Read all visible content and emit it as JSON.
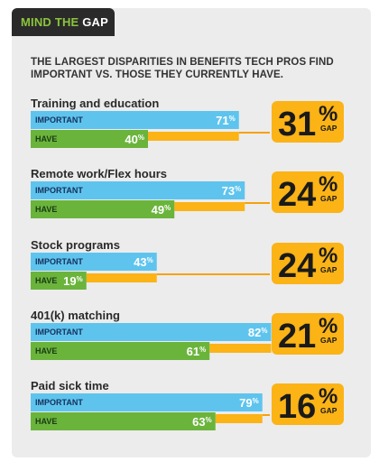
{
  "header": {
    "tab_part1": "MIND THE ",
    "tab_part2": "GAP"
  },
  "subtitle": "THE LARGEST DISPARITIES IN BENEFITS TECH PROS FIND IMPORTANT VS. THOSE THEY CURRENTLY HAVE.",
  "colors": {
    "important": "#5ec4ee",
    "have": "#6ab43c",
    "gap": "#fbb316",
    "connector": "#f5a20a"
  },
  "chart_data": {
    "type": "bar",
    "title": "THE LARGEST DISPARITIES IN BENEFITS TECH PROS FIND IMPORTANT VS. THOSE THEY CURRENTLY HAVE.",
    "categories": [
      "Training and education",
      "Remote work/Flex hours",
      "Stock programs",
      "401(k) matching",
      "Paid sick time"
    ],
    "series": [
      {
        "name": "IMPORTANT",
        "values": [
          71,
          73,
          43,
          82,
          79
        ]
      },
      {
        "name": "HAVE",
        "values": [
          40,
          49,
          19,
          61,
          63
        ]
      }
    ],
    "gaps": [
      31,
      24,
      24,
      21,
      16
    ],
    "value_suffix": "%",
    "gap_label": "GAP",
    "xlim": [
      0,
      100
    ]
  }
}
